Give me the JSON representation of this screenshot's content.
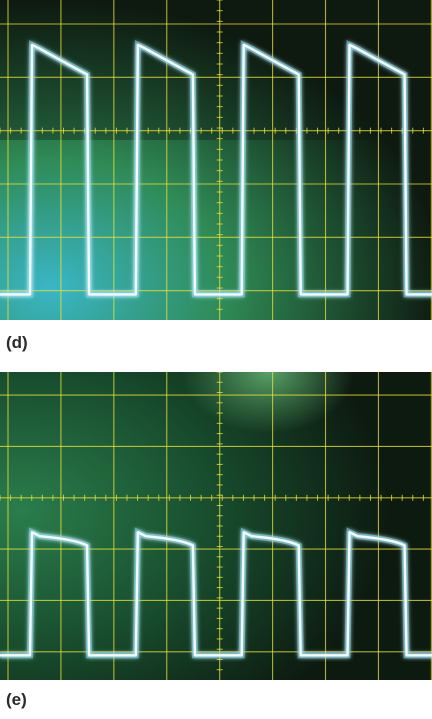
{
  "panels": [
    {
      "label": "(d)",
      "colors": {
        "grid": "#e8e23a",
        "trace": "#f2fbff",
        "trace_glow": "#7fd6e8",
        "screen_dark": "#0e1a10",
        "screen_green": "#2f8a55",
        "screen_cyan": "#3ab6c6"
      },
      "levels": {
        "high": 0.78,
        "low": 0.08,
        "overshoot": 0.86
      },
      "duty": 0.55,
      "cycles": 4
    },
    {
      "label": "(e)",
      "colors": {
        "grid": "#e8e23a",
        "trace": "#f2fbff",
        "trace_glow": "#7fd6e8",
        "screen_dark": "#0d1a10",
        "screen_green": "#2a7d4c",
        "screen_cyan": "#3fb0c2"
      },
      "levels": {
        "high": 0.45,
        "low": 0.08,
        "overshoot": 0.48
      },
      "duty": 0.55,
      "cycles": 4
    }
  ]
}
